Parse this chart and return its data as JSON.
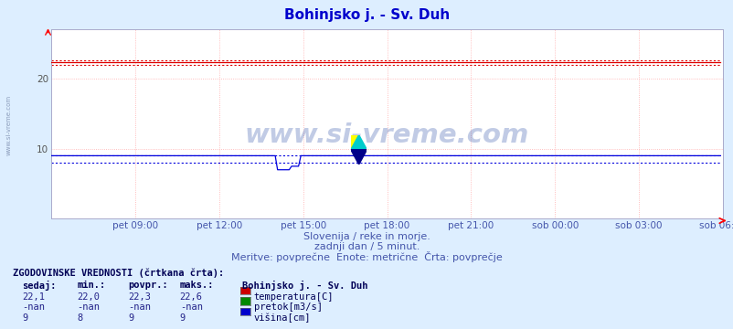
{
  "title": "Bohinjsko j. - Sv. Duh",
  "title_color": "#0000cc",
  "bg_color": "#ddeeff",
  "plot_bg_color": "#ffffff",
  "grid_color": "#ffaaaa",
  "xlim": [
    0,
    288
  ],
  "ylim": [
    0,
    27
  ],
  "yticks": [
    10,
    20
  ],
  "xtick_labels": [
    "pet 09:00",
    "pet 12:00",
    "pet 15:00",
    "pet 18:00",
    "pet 21:00",
    "sob 00:00",
    "sob 03:00",
    "sob 06:00"
  ],
  "xtick_positions": [
    36,
    72,
    108,
    144,
    180,
    216,
    252,
    288
  ],
  "temp_value": 22.3,
  "temp_min": 22.0,
  "temp_max": 22.6,
  "temp_color": "#dd0000",
  "visina_value": 9.0,
  "visina_min": 8.0,
  "visina_max": 9.0,
  "visina_color": "#0000dd",
  "pretok_color": "#00aa00",
  "subtitle1": "Slovenija / reke in morje.",
  "subtitle2": "zadnji dan / 5 minut.",
  "subtitle3": "Meritve: povprečne  Enote: metrične  Črta: povprečje",
  "subtitle_color": "#4455aa",
  "watermark": "www.si-vreme.com",
  "watermark_color": "#3355aa",
  "label_color": "#4455aa",
  "table_header": "ZGODOVINSKE VREDNOSTI (črtkana črta):",
  "col_headers": [
    "sedaj:",
    "min.:",
    "povpr.:",
    "maks.:"
  ],
  "rows": [
    {
      "sedaj": "22,1",
      "min": "22,0",
      "povpr": "22,3",
      "maks": "22,6",
      "color": "#cc0000",
      "label": "temperatura[C]"
    },
    {
      "sedaj": "-nan",
      "min": "-nan",
      "povpr": "-nan",
      "maks": "-nan",
      "color": "#008800",
      "label": "pretok[m3/s]"
    },
    {
      "sedaj": "9",
      "min": "8",
      "povpr": "9",
      "maks": "9",
      "color": "#0000cc",
      "label": "višina[cm]"
    }
  ],
  "station_label": "Bohinjsko j. - Sv. Duh",
  "border_color": "#aaaacc",
  "left_watermark": "www.si-vreme.com"
}
